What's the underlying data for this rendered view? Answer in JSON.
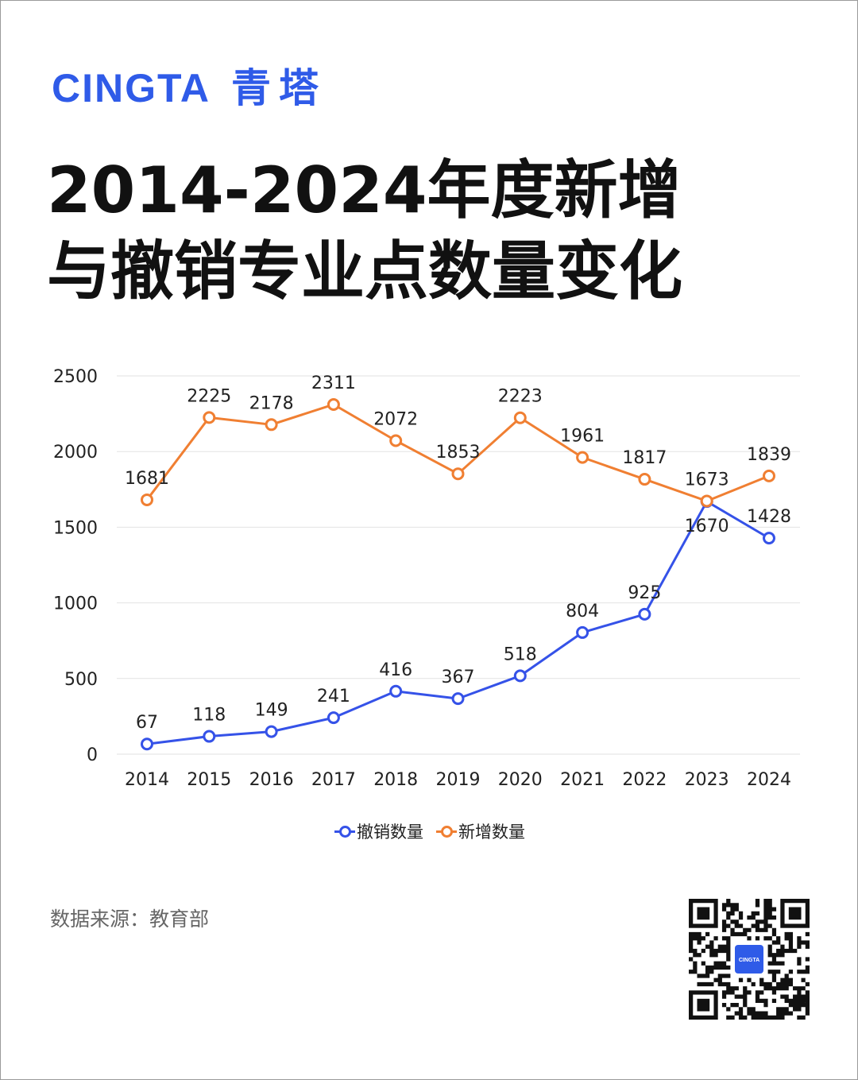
{
  "brand": {
    "latin": "CINGTA",
    "chinese": "青塔"
  },
  "title": {
    "line1": "2014-2024年度新增",
    "line2": "与撤销专业点数量变化"
  },
  "source": "数据来源：教育部",
  "qr": {
    "logo_text": "CINGTA"
  },
  "colors": {
    "revoked": "#3552e8",
    "added": "#f07f32",
    "brand": "#2f5be8"
  },
  "chart_data": {
    "type": "line",
    "categories": [
      "2014",
      "2015",
      "2016",
      "2017",
      "2018",
      "2019",
      "2020",
      "2021",
      "2022",
      "2023",
      "2024"
    ],
    "yticks": [
      0,
      500,
      1000,
      1500,
      2000,
      2500
    ],
    "ylim": [
      0,
      2500
    ],
    "grid": true,
    "legend_position": "bottom",
    "series": [
      {
        "name": "撤销数量",
        "color": "#3552e8",
        "values": [
          67,
          118,
          149,
          241,
          416,
          367,
          518,
          804,
          925,
          1670,
          1428
        ]
      },
      {
        "name": "新增数量",
        "color": "#f07f32",
        "values": [
          1681,
          2225,
          2178,
          2311,
          2072,
          1853,
          2223,
          1961,
          1817,
          1673,
          1839
        ]
      }
    ]
  }
}
